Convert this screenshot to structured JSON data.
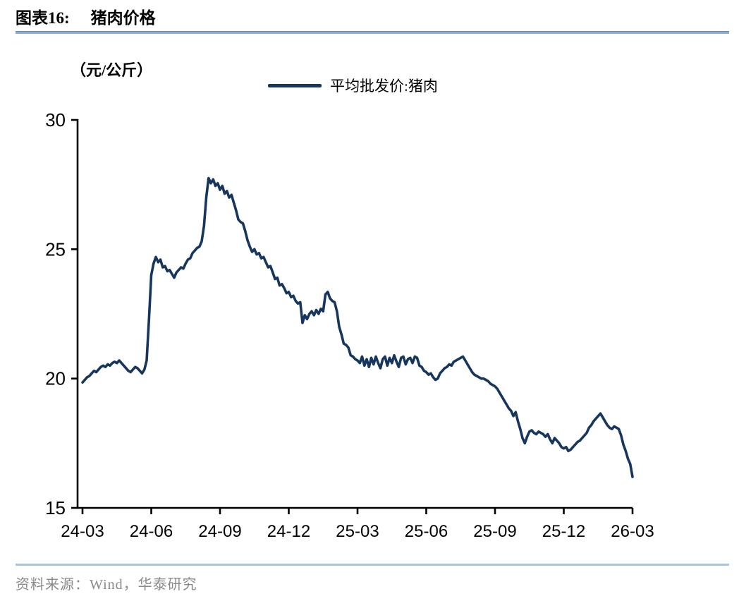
{
  "header": {
    "title_prefix": "图表16:",
    "title": "猪肉价格"
  },
  "legend": {
    "label": "平均批发价:猪肉"
  },
  "chart_data": {
    "type": "line",
    "title": "猪肉价格",
    "ylabel": "（元/公斤）",
    "xlabel": "",
    "ylim": [
      15,
      30
    ],
    "y_ticks": [
      30,
      25,
      20,
      15
    ],
    "x_tick_labels": [
      "24-03",
      "24-06",
      "24-09",
      "24-12",
      "25-03",
      "25-06",
      "25-09",
      "25-12",
      "26-03"
    ],
    "x_range_months": [
      0,
      24
    ],
    "x_unit": "months since 2024-03, points evenly spaced (~3 days apart)",
    "grid": false,
    "legend_position": "top-center",
    "line_color": "#17365d",
    "axis_color": "#000000",
    "series": [
      {
        "name": "平均批发价:猪肉",
        "values": [
          19.85,
          19.95,
          20.05,
          20.1,
          20.2,
          20.3,
          20.25,
          20.35,
          20.45,
          20.5,
          20.45,
          20.55,
          20.5,
          20.6,
          20.65,
          20.6,
          20.7,
          20.6,
          20.5,
          20.4,
          20.3,
          20.25,
          20.35,
          20.45,
          20.4,
          20.3,
          20.2,
          20.35,
          20.7,
          22.3,
          24.0,
          24.45,
          24.7,
          24.5,
          24.6,
          24.3,
          24.35,
          24.15,
          24.2,
          24.05,
          23.9,
          24.1,
          24.2,
          24.3,
          24.25,
          24.45,
          24.6,
          24.65,
          24.85,
          24.95,
          25.05,
          25.1,
          25.3,
          25.9,
          27.0,
          27.75,
          27.55,
          27.7,
          27.45,
          27.55,
          27.3,
          27.45,
          27.15,
          27.25,
          27.0,
          27.1,
          26.8,
          26.5,
          26.15,
          26.05,
          26.0,
          25.7,
          25.35,
          25.1,
          24.9,
          25.0,
          24.8,
          24.85,
          24.65,
          24.7,
          24.5,
          24.3,
          24.35,
          24.1,
          23.85,
          23.9,
          23.6,
          23.65,
          23.5,
          23.3,
          23.35,
          23.15,
          23.2,
          23.0,
          22.9,
          22.95,
          22.15,
          22.45,
          22.3,
          22.5,
          22.6,
          22.45,
          22.65,
          22.5,
          22.7,
          22.6,
          23.25,
          23.35,
          23.1,
          23.0,
          22.95,
          22.6,
          22.0,
          21.7,
          21.35,
          21.3,
          21.2,
          20.9,
          20.85,
          20.75,
          20.7,
          20.6,
          20.85,
          20.5,
          20.75,
          20.45,
          20.8,
          20.55,
          20.85,
          20.6,
          20.4,
          20.75,
          20.85,
          20.5,
          20.8,
          20.6,
          20.9,
          20.65,
          20.45,
          20.8,
          20.85,
          20.55,
          20.75,
          20.8,
          20.6,
          20.85,
          20.8,
          20.5,
          20.45,
          20.3,
          20.25,
          20.15,
          20.2,
          20.05,
          19.95,
          20.0,
          20.2,
          20.3,
          20.4,
          20.45,
          20.55,
          20.5,
          20.65,
          20.7,
          20.75,
          20.8,
          20.85,
          20.7,
          20.55,
          20.4,
          20.25,
          20.15,
          20.1,
          20.05,
          20.0,
          20.0,
          19.95,
          19.9,
          19.8,
          19.75,
          19.7,
          19.6,
          19.45,
          19.3,
          19.15,
          19.0,
          18.85,
          18.75,
          18.55,
          18.7,
          18.35,
          18.05,
          17.7,
          17.5,
          17.75,
          17.95,
          18.0,
          17.9,
          17.85,
          17.95,
          17.9,
          17.85,
          17.75,
          17.85,
          17.65,
          17.5,
          17.7,
          17.6,
          17.5,
          17.35,
          17.3,
          17.35,
          17.2,
          17.25,
          17.35,
          17.45,
          17.55,
          17.6,
          17.7,
          17.8,
          17.9,
          18.1,
          18.2,
          18.35,
          18.45,
          18.55,
          18.65,
          18.5,
          18.35,
          18.2,
          18.1,
          18.05,
          18.15,
          18.1,
          18.05,
          17.8,
          17.45,
          17.2,
          16.9,
          16.7,
          16.2
        ]
      }
    ]
  },
  "footer": {
    "source": "资料来源：Wind，华泰研究"
  }
}
